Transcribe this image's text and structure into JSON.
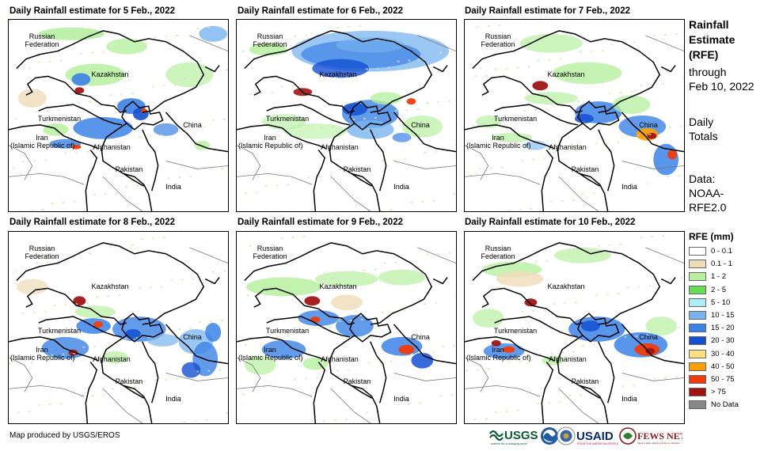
{
  "panels": [
    {
      "title": "Daily Rainfall estimate for 5 Feb., 2022"
    },
    {
      "title": "Daily Rainfall estimate for 6 Feb., 2022"
    },
    {
      "title": "Daily Rainfall estimate for 7 Feb., 2022"
    },
    {
      "title": "Daily Rainfall estimate for 8 Feb., 2022"
    },
    {
      "title": "Daily Rainfall estimate for 9 Feb., 2022"
    },
    {
      "title": "Daily Rainfall estimate for 10 Feb., 2022"
    }
  ],
  "map_labels": {
    "russia": "Russian\nFederation",
    "kazakhstan": "Kazakhstan",
    "turkmenistan": "Turkmenistan",
    "china": "China",
    "iran": "Iran\n(Islamic Republic of)",
    "afghanistan": "Afghanistan",
    "pakistan": "Pakistan",
    "india": "India"
  },
  "side_text": {
    "title_line1": "Rainfall",
    "title_line2": "Estimate",
    "title_line3": "(RFE)",
    "through_line1": "through",
    "through_line2": "Feb 10, 2022",
    "daily_line1": "Daily",
    "daily_line2": "Totals",
    "data_line1": "Data:",
    "data_line2": "NOAA-",
    "data_line3": "RFE2.0"
  },
  "legend": {
    "title": "RFE (mm)",
    "items": [
      {
        "label": "0 - 0.1",
        "color": "#ffffff"
      },
      {
        "label": "0.1 - 1",
        "color": "#f0dcb8"
      },
      {
        "label": "1 - 2",
        "color": "#b6f0a0"
      },
      {
        "label": "2 - 5",
        "color": "#66dd55"
      },
      {
        "label": "5 - 10",
        "color": "#b0ecf8"
      },
      {
        "label": "10 - 15",
        "color": "#78b4f0"
      },
      {
        "label": "15 - 20",
        "color": "#3c82e6"
      },
      {
        "label": "20 - 30",
        "color": "#1450d2"
      },
      {
        "label": "30 - 40",
        "color": "#ffe080"
      },
      {
        "label": "40 - 50",
        "color": "#ffa000"
      },
      {
        "label": "50 - 75",
        "color": "#f03c0a"
      },
      {
        "label": "> 75",
        "color": "#a01414"
      },
      {
        "label": "No Data",
        "color": "#888888"
      }
    ]
  },
  "credit": "Map produced by USGS/EROS",
  "logos": {
    "usgs": "USGS",
    "usgs_tagline": "science for a changing world",
    "usaid": "USAID",
    "usaid_tagline": "FROM THE AMERICAN PEOPLE",
    "fewsnet": "FEWS NET",
    "fewsnet_tagline": "Famine Early Warning Systems Network"
  }
}
